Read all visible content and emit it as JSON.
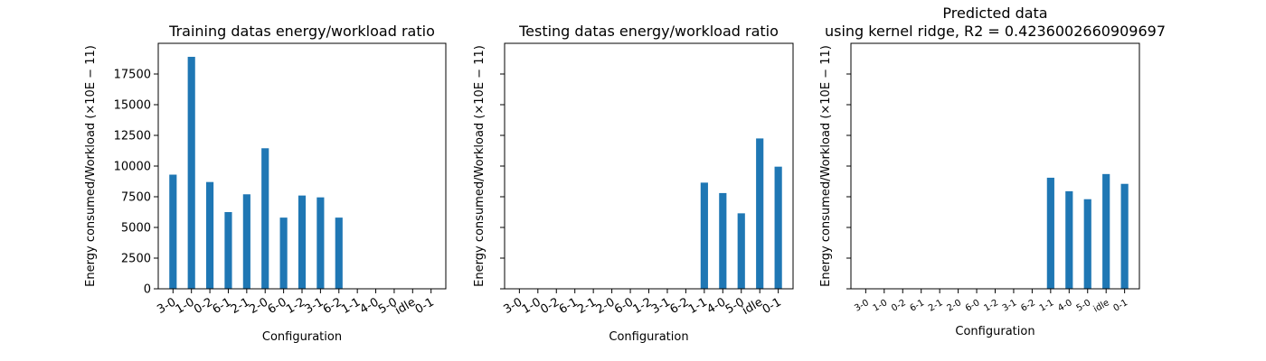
{
  "figure": {
    "colors": {
      "bar": "#1f77b4",
      "axis": "#000000",
      "background": "#ffffff"
    }
  },
  "chart_data": [
    {
      "type": "bar",
      "title": "Training datas energy/workload ratio",
      "xlabel": "Configuration",
      "ylabel": "Energy consumed/Workload (×10E − 11)",
      "categories": [
        "3-0",
        "1-0",
        "0-2",
        "6-1",
        "2-1",
        "2-0",
        "6-0",
        "1-2",
        "3-1",
        "6-2",
        "1-1",
        "4-0",
        "5-0",
        "idle",
        "0-1"
      ],
      "values": [
        9300,
        18900,
        8700,
        6250,
        7700,
        11450,
        5800,
        7600,
        7450,
        5800,
        null,
        null,
        null,
        null,
        null
      ],
      "ylim": [
        0,
        20000
      ],
      "yticks": [
        0,
        2500,
        5000,
        7500,
        10000,
        12500,
        15000,
        17500
      ],
      "show_ytick_labels": true,
      "grid": false
    },
    {
      "type": "bar",
      "title": "Testing datas energy/workload ratio",
      "xlabel": "Configuration",
      "ylabel": "Energy consumed/Workload (×10E − 11)",
      "categories": [
        "3-0",
        "1-0",
        "0-2",
        "6-1",
        "2-1",
        "2-0",
        "6-0",
        "1-2",
        "3-1",
        "6-2",
        "1-1",
        "4-0",
        "5-0",
        "idle",
        "0-1"
      ],
      "values": [
        null,
        null,
        null,
        null,
        null,
        null,
        null,
        null,
        null,
        null,
        8650,
        7800,
        6150,
        12250,
        9950
      ],
      "ylim": [
        0,
        20000
      ],
      "yticks": [
        0,
        2500,
        5000,
        7500,
        10000,
        12500,
        15000,
        17500
      ],
      "show_ytick_labels": false,
      "grid": false
    },
    {
      "type": "bar",
      "title": "Predicted data\nusing kernel ridge, R2 = 0.4236002660909697",
      "xlabel": "Configuration",
      "ylabel": "Energy consumed/Workload (×10E − 11)",
      "categories": [
        "3-0",
        "1-0",
        "0-2",
        "6-1",
        "2-1",
        "2-0",
        "6-0",
        "1-2",
        "3-1",
        "6-2",
        "1-1",
        "4-0",
        "5-0",
        "idle",
        "0-1"
      ],
      "values": [
        null,
        null,
        null,
        null,
        null,
        null,
        null,
        null,
        null,
        null,
        9050,
        7950,
        7300,
        9350,
        8550
      ],
      "ylim": [
        0,
        20000
      ],
      "yticks": [
        0,
        2500,
        5000,
        7500,
        10000,
        12500,
        15000,
        17500
      ],
      "show_ytick_labels": false,
      "grid": false
    }
  ]
}
